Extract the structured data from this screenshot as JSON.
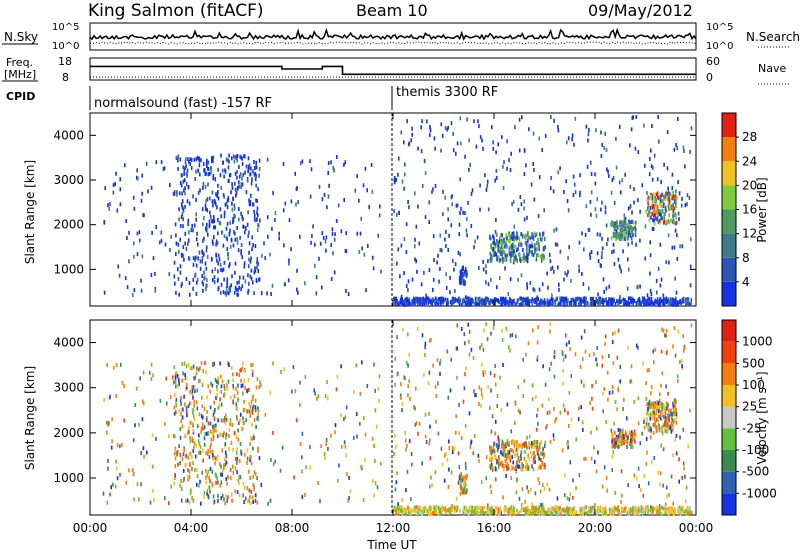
{
  "header": {
    "station": "King Salmon (fitACF)",
    "beam": "Beam 10",
    "date": "09/May/2012"
  },
  "noise_panel": {
    "left_label": "N.Sky",
    "right_label": "N.Search",
    "left_ticks": [
      "10^5",
      "10^0"
    ],
    "right_ticks": [
      "10^5",
      "10^0"
    ]
  },
  "freq_panel": {
    "left_label_line1": "Freq.",
    "left_label_line2": "[MHz]",
    "right_label": "Nave",
    "left_ticks": [
      "18",
      "8"
    ],
    "right_ticks": [
      "60",
      "0"
    ],
    "freq_profile": [
      {
        "start_h": 0.0,
        "end_h": 7.6,
        "mhz": 14.2
      },
      {
        "start_h": 7.6,
        "end_h": 9.2,
        "mhz": 13.0
      },
      {
        "start_h": 9.2,
        "end_h": 10.0,
        "mhz": 14.2
      },
      {
        "start_h": 10.0,
        "end_h": 24.0,
        "mhz": 10.6
      }
    ],
    "nave_level": 8
  },
  "cpid": {
    "label": "CPID",
    "segments": [
      {
        "label": "normalsound (fast) -157 RF",
        "start_h": 0
      },
      {
        "label": "themis 3300 RF",
        "start_h": 12
      }
    ]
  },
  "chart_data": [
    {
      "type": "scatter",
      "title": "Power",
      "ylabel": "Slant Range [km]",
      "xlabel": "Time UT",
      "x_ticks": [
        "00:00",
        "04:00",
        "08:00",
        "12:00",
        "16:00",
        "20:00",
        "00:00"
      ],
      "y_ticks": [
        1000,
        2000,
        3000,
        4000
      ],
      "xlim": [
        0,
        24
      ],
      "ylim": [
        180,
        4500
      ],
      "colorbar": {
        "label": "Power [dB]",
        "ticks": [
          "4",
          "8",
          "12",
          "16",
          "20",
          "24",
          "28"
        ],
        "colors": [
          "#1433e0",
          "#2e55b8",
          "#3d7c8a",
          "#4f9a5c",
          "#7ccd3a",
          "#f0c020",
          "#f08010",
          "#e02010"
        ]
      },
      "echo_regions": [
        {
          "t0": 0.5,
          "t1": 11.5,
          "r0": 400,
          "r1": 3550,
          "n": 260,
          "palette": "low"
        },
        {
          "t0": 3.3,
          "t1": 6.7,
          "r0": 400,
          "r1": 3550,
          "n": 420,
          "palette": "low"
        },
        {
          "t0": 12.0,
          "t1": 23.8,
          "r0": 200,
          "r1": 4400,
          "n": 520,
          "palette": "low"
        },
        {
          "t0": 12.0,
          "t1": 23.8,
          "r0": 180,
          "r1": 330,
          "n": 650,
          "palette": "low"
        },
        {
          "t0": 14.6,
          "t1": 14.9,
          "r0": 650,
          "r1": 1050,
          "n": 40,
          "palette": "low"
        },
        {
          "t0": 15.8,
          "t1": 18.0,
          "r0": 1150,
          "r1": 1800,
          "n": 220,
          "palette": "mid"
        },
        {
          "t0": 20.6,
          "t1": 21.6,
          "r0": 1650,
          "r1": 2050,
          "n": 120,
          "palette": "mid"
        },
        {
          "t0": 22.0,
          "t1": 23.2,
          "r0": 2000,
          "r1": 2700,
          "n": 160,
          "palette": "high"
        }
      ]
    },
    {
      "type": "scatter",
      "title": "Velocity",
      "ylabel": "Slant Range [km]",
      "xlabel": "Time UT",
      "x_ticks": [
        "00:00",
        "04:00",
        "08:00",
        "12:00",
        "16:00",
        "20:00",
        "00:00"
      ],
      "y_ticks": [
        1000,
        2000,
        3000,
        4000
      ],
      "xlim": [
        0,
        24
      ],
      "ylim": [
        180,
        4500
      ],
      "colorbar": {
        "label": "Velocity [m s⁻¹]",
        "ticks": [
          "1000",
          "500",
          "100",
          "25",
          "-25",
          "-100",
          "-500",
          "-1000"
        ],
        "colors": [
          "#1433e0",
          "#2e62b0",
          "#3d8a50",
          "#60c040",
          "#c8c8c8",
          "#f0c020",
          "#f08010",
          "#f04010",
          "#e02010"
        ]
      },
      "echo_regions": [
        {
          "t0": 0.5,
          "t1": 11.5,
          "r0": 400,
          "r1": 3550,
          "n": 260,
          "palette": "mix"
        },
        {
          "t0": 3.3,
          "t1": 6.7,
          "r0": 400,
          "r1": 3550,
          "n": 420,
          "palette": "mix"
        },
        {
          "t0": 12.0,
          "t1": 23.8,
          "r0": 200,
          "r1": 4400,
          "n": 520,
          "palette": "mix"
        },
        {
          "t0": 12.0,
          "t1": 23.8,
          "r0": 180,
          "r1": 330,
          "n": 650,
          "palette": "warm"
        },
        {
          "t0": 14.6,
          "t1": 14.9,
          "r0": 650,
          "r1": 1050,
          "n": 40,
          "palette": "mix"
        },
        {
          "t0": 15.8,
          "t1": 18.0,
          "r0": 1150,
          "r1": 1800,
          "n": 220,
          "palette": "mix"
        },
        {
          "t0": 20.6,
          "t1": 21.6,
          "r0": 1650,
          "r1": 2050,
          "n": 120,
          "palette": "mix"
        },
        {
          "t0": 22.0,
          "t1": 23.2,
          "r0": 2000,
          "r1": 2700,
          "n": 160,
          "palette": "mix"
        }
      ]
    }
  ]
}
